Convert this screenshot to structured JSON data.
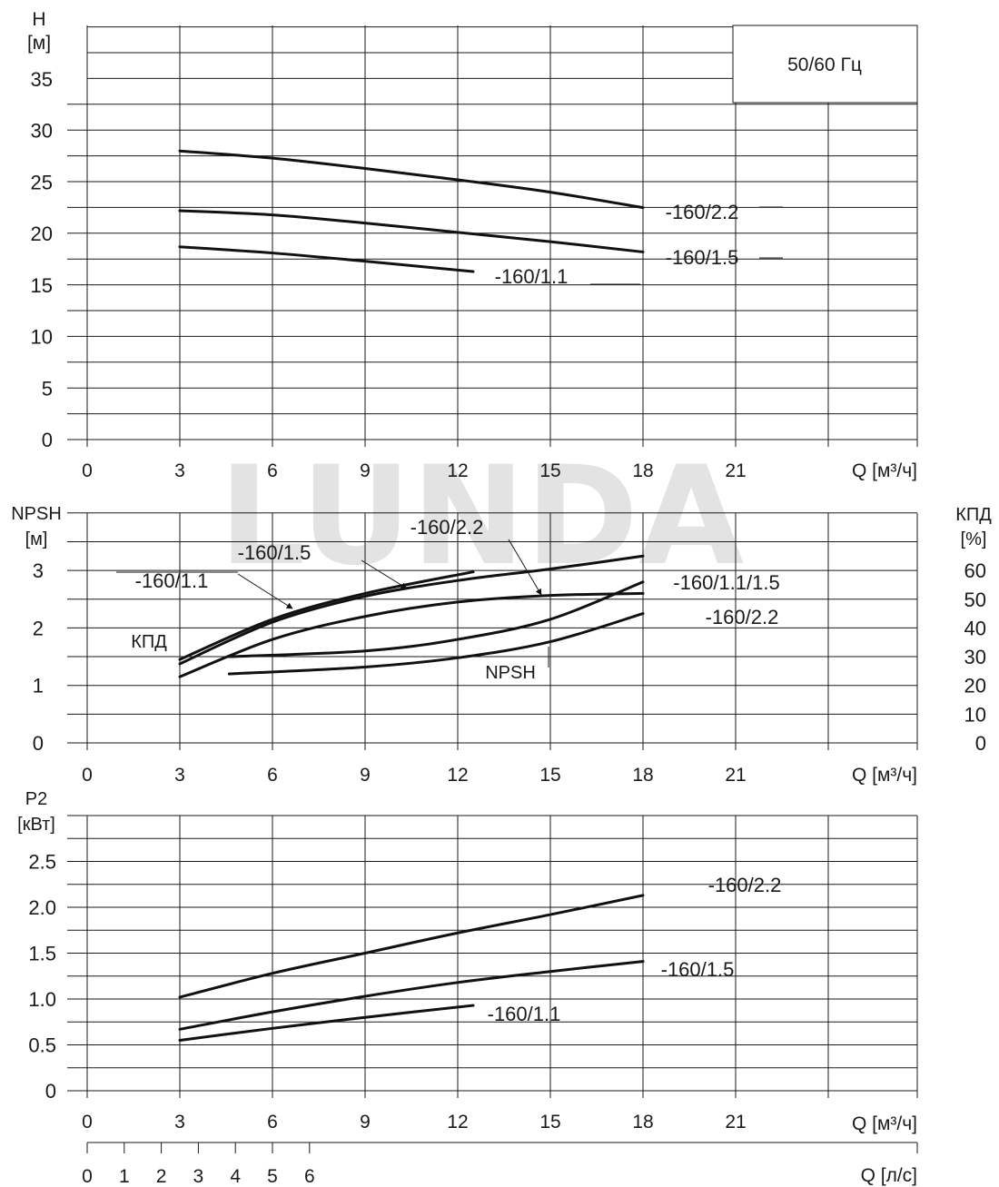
{
  "watermark": "LUNDA",
  "chart_data": [
    {
      "type": "line",
      "title": "",
      "ylabel_lines": [
        "H",
        "[м]"
      ],
      "xlabel": "Q [м³/ч]",
      "xlim": [
        0,
        27
      ],
      "ylim": [
        0,
        40
      ],
      "grid": true,
      "x_ticks": [
        0,
        3,
        6,
        9,
        12,
        15,
        18,
        21
      ],
      "y_ticks": [
        "0",
        "5",
        "10",
        "15",
        "20",
        "25",
        "30",
        "35"
      ],
      "legend_box": "50/60 Гц",
      "series": [
        {
          "name": "-160/2.2",
          "x": [
            3,
            6,
            9,
            12,
            15,
            18
          ],
          "y": [
            28,
            27.3,
            26.3,
            25.2,
            24.0,
            22.5
          ]
        },
        {
          "name": "-160/1.5",
          "x": [
            3,
            6,
            9,
            12,
            15,
            18
          ],
          "y": [
            22.2,
            21.8,
            21.0,
            20.1,
            19.2,
            18.2
          ]
        },
        {
          "name": "-160/1.1",
          "x": [
            3,
            6,
            9,
            12.5
          ],
          "y": [
            18.7,
            18.1,
            17.3,
            16.3
          ]
        }
      ]
    },
    {
      "type": "line",
      "title": "",
      "ylabel_left_lines": [
        "NPSH",
        "[м]"
      ],
      "ylabel_right_lines": [
        "КПД",
        "[%]"
      ],
      "xlabel": "Q [м³/ч]",
      "xlim": [
        0,
        27
      ],
      "ylim_left": [
        0,
        4
      ],
      "ylim_right": [
        0,
        80
      ],
      "grid": true,
      "x_ticks": [
        0,
        3,
        6,
        9,
        12,
        15,
        18,
        21
      ],
      "y_ticks_left": [
        "0",
        "1",
        "2",
        "3"
      ],
      "y_ticks_right": [
        "0",
        "10",
        "20",
        "30",
        "40",
        "50",
        "60"
      ],
      "group_labels": {
        "efficiency": "КПД",
        "npsh": "NPSH"
      },
      "series": [
        {
          "name": "-160/1.1",
          "group": "КПД",
          "x": [
            3,
            6,
            9,
            12.5
          ],
          "y": [
            29,
            43,
            52,
            59.5
          ]
        },
        {
          "name": "-160/1.5",
          "group": "КПД",
          "x": [
            3,
            6,
            9,
            12,
            15,
            18
          ],
          "y": [
            27.5,
            42,
            51,
            56.5,
            60.5,
            65
          ]
        },
        {
          "name": "-160/2.2",
          "group": "КПД",
          "x": [
            3,
            6,
            9,
            12,
            15,
            18
          ],
          "y": [
            23,
            36,
            44,
            49,
            51.3,
            52
          ]
        },
        {
          "name": "-160/1.1/1.5",
          "group": "NPSH",
          "x": [
            4.6,
            9,
            12,
            15,
            18
          ],
          "y": [
            1.5,
            1.6,
            1.8,
            2.15,
            2.8
          ]
        },
        {
          "name": "-160/2.2",
          "group": "NPSH",
          "x": [
            4.6,
            9,
            12,
            15,
            18
          ],
          "y": [
            1.2,
            1.32,
            1.48,
            1.76,
            2.25
          ]
        }
      ]
    },
    {
      "type": "line",
      "title": "",
      "ylabel_lines": [
        "P2",
        "[кВт]"
      ],
      "xlabel": "Q [м³/ч]",
      "xlim": [
        0,
        27
      ],
      "ylim": [
        0,
        3.0
      ],
      "grid": true,
      "x_ticks": [
        0,
        3,
        6,
        9,
        12,
        15,
        18,
        21
      ],
      "y_ticks": [
        "0",
        "0.5",
        "1.0",
        "1.5",
        "2.0",
        "2.5"
      ],
      "secondary_x_axis": {
        "label": "Q [л/с]",
        "ticks": [
          0,
          1,
          2,
          3,
          4,
          5,
          6
        ],
        "lim": [
          0,
          7.5
        ]
      },
      "series": [
        {
          "name": "-160/2.2",
          "x": [
            3,
            6,
            9,
            12,
            15,
            18
          ],
          "y": [
            1.02,
            1.28,
            1.5,
            1.72,
            1.92,
            2.13
          ]
        },
        {
          "name": "-160/1.5",
          "x": [
            3,
            6,
            9,
            12,
            15,
            18
          ],
          "y": [
            0.67,
            0.86,
            1.03,
            1.18,
            1.3,
            1.41
          ]
        },
        {
          "name": "-160/1.1",
          "x": [
            3,
            6,
            9,
            12.5
          ],
          "y": [
            0.55,
            0.68,
            0.8,
            0.93
          ]
        }
      ]
    }
  ]
}
